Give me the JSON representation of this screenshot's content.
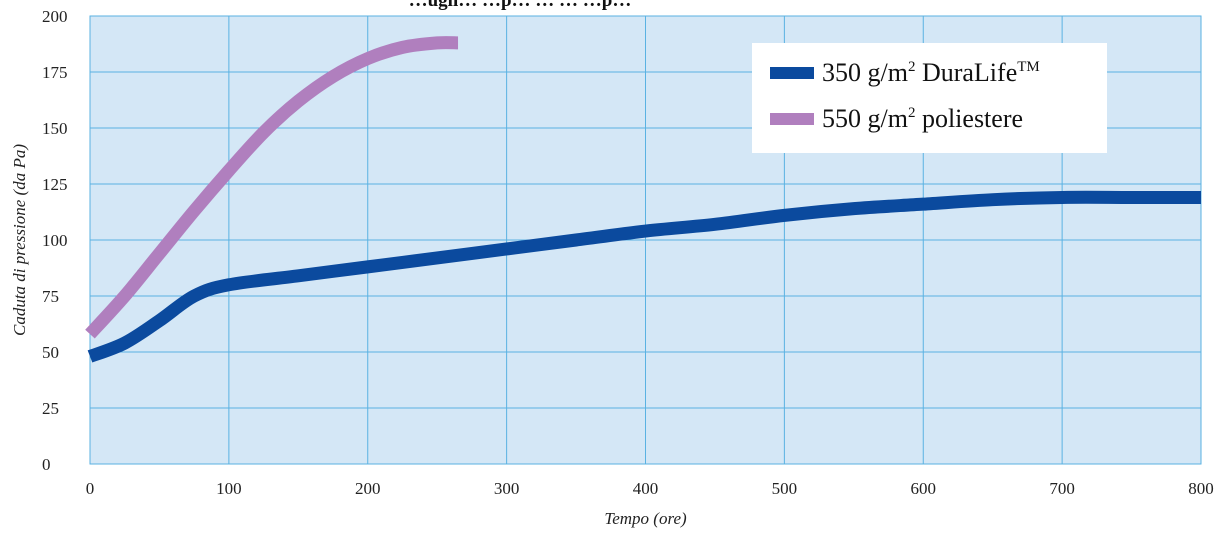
{
  "chart_data": {
    "type": "line",
    "title": "…ugli… …p… … … …p…",
    "title_visible_fragment": "g",
    "xlabel": "Tempo (ore)",
    "ylabel": "Caduta di pressione (da Pa)",
    "xlim": [
      0,
      800
    ],
    "ylim": [
      0,
      200
    ],
    "x_ticks": [
      "0",
      "100",
      "200",
      "300",
      "400",
      "500",
      "600",
      "700",
      "800"
    ],
    "y_ticks": [
      "0",
      "25",
      "50",
      "75",
      "100",
      "125",
      "150",
      "175",
      "200"
    ],
    "grid": true,
    "legend_position": "top-right",
    "plot_background": "#d4e7f6",
    "grid_color": "#5ab2e2",
    "series": [
      {
        "name": "350 g/m² DuraLife™",
        "legend_parts": [
          "350 g/m",
          "2",
          " DuraLife",
          "TM"
        ],
        "color": "#0b4a9e",
        "x": [
          0,
          25,
          50,
          75,
          100,
          150,
          200,
          250,
          300,
          350,
          400,
          450,
          500,
          550,
          600,
          650,
          700,
          750,
          800
        ],
        "y": [
          48,
          54,
          64,
          75,
          80,
          84,
          88,
          92,
          96,
          100,
          104,
          107,
          111,
          114,
          116,
          118,
          119,
          119,
          119
        ]
      },
      {
        "name": "550 g/m² poliestere",
        "legend_parts": [
          "550 g/m",
          "2",
          " poliestere",
          ""
        ],
        "color": "#b07fbe",
        "x": [
          0,
          25,
          50,
          75,
          100,
          125,
          150,
          175,
          200,
          225,
          250,
          265
        ],
        "y": [
          58,
          75,
          94,
          113,
          131,
          148,
          162,
          173,
          181,
          186,
          188,
          188
        ]
      }
    ]
  }
}
